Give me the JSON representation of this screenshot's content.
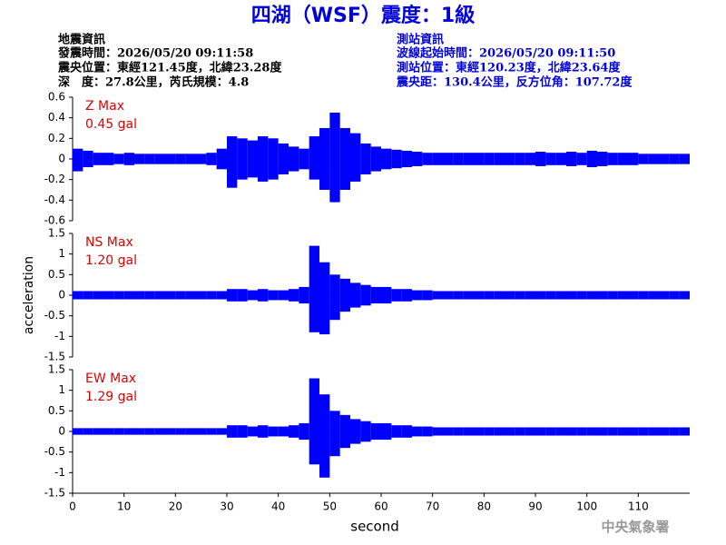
{
  "header": {
    "title": "四湖（WSF）震度：1級",
    "left": [
      "地震資訊",
      "發震時間：2026/05/20 09:11:58",
      "震央位置：東經121.45度，北緯23.28度",
      "深　度：27.8公里，芮氏規模：4.8"
    ],
    "right": [
      "測站資訊",
      "波線起始時間：2026/05/20 09:11:50",
      "測站位置：東經120.23度，北緯23.64度",
      "震央距：130.4公里，反方位角：107.72度"
    ]
  },
  "footer": "中央氣象署",
  "chart_data": [
    {
      "type": "band",
      "annotation": [
        "Z Max",
        "0.45 gal"
      ],
      "color": "#0000ff",
      "xlim": [
        0,
        120
      ],
      "ylim": [
        -0.6,
        0.6
      ],
      "yticks": [
        0.6,
        0.4,
        0.2,
        0,
        -0.2,
        -0.4,
        -0.6
      ],
      "x": [
        0,
        2,
        4,
        6,
        8,
        10,
        12,
        14,
        16,
        18,
        20,
        22,
        24,
        26,
        28,
        30,
        32,
        34,
        36,
        38,
        40,
        42,
        44,
        46,
        48,
        50,
        52,
        54,
        56,
        58,
        60,
        62,
        64,
        66,
        68,
        70,
        72,
        74,
        76,
        78,
        80,
        82,
        84,
        86,
        88,
        90,
        92,
        94,
        96,
        98,
        100,
        102,
        104,
        106,
        108,
        110,
        112,
        114,
        116,
        118
      ],
      "upper": [
        0.1,
        0.08,
        0.06,
        0.06,
        0.05,
        0.06,
        0.05,
        0.05,
        0.05,
        0.05,
        0.05,
        0.05,
        0.05,
        0.06,
        0.1,
        0.22,
        0.2,
        0.18,
        0.22,
        0.2,
        0.15,
        0.12,
        0.1,
        0.22,
        0.3,
        0.45,
        0.3,
        0.25,
        0.15,
        0.12,
        0.1,
        0.09,
        0.08,
        0.07,
        0.06,
        0.06,
        0.06,
        0.06,
        0.06,
        0.06,
        0.06,
        0.06,
        0.06,
        0.06,
        0.06,
        0.07,
        0.06,
        0.06,
        0.07,
        0.06,
        0.08,
        0.07,
        0.06,
        0.06,
        0.06,
        0.05,
        0.05,
        0.05,
        0.05,
        0.05
      ],
      "lower": [
        -0.12,
        -0.08,
        -0.06,
        -0.06,
        -0.05,
        -0.06,
        -0.05,
        -0.05,
        -0.05,
        -0.05,
        -0.05,
        -0.05,
        -0.05,
        -0.06,
        -0.1,
        -0.28,
        -0.2,
        -0.18,
        -0.22,
        -0.2,
        -0.15,
        -0.12,
        -0.1,
        -0.2,
        -0.3,
        -0.42,
        -0.3,
        -0.22,
        -0.15,
        -0.12,
        -0.1,
        -0.09,
        -0.08,
        -0.07,
        -0.06,
        -0.06,
        -0.06,
        -0.06,
        -0.06,
        -0.06,
        -0.06,
        -0.06,
        -0.06,
        -0.06,
        -0.06,
        -0.07,
        -0.06,
        -0.06,
        -0.07,
        -0.06,
        -0.08,
        -0.07,
        -0.06,
        -0.06,
        -0.06,
        -0.05,
        -0.05,
        -0.05,
        -0.05,
        -0.05
      ]
    },
    {
      "type": "band",
      "annotation": [
        "NS Max",
        "1.20 gal"
      ],
      "ylabel": "acceleration",
      "color": "#0000ff",
      "xlim": [
        0,
        120
      ],
      "ylim": [
        -1.5,
        1.5
      ],
      "yticks": [
        1.5,
        1,
        0.5,
        0,
        -0.5,
        -1,
        -1.5
      ],
      "x": [
        0,
        2,
        4,
        6,
        8,
        10,
        12,
        14,
        16,
        18,
        20,
        22,
        24,
        26,
        28,
        30,
        32,
        34,
        36,
        38,
        40,
        42,
        44,
        46,
        48,
        50,
        52,
        54,
        56,
        58,
        60,
        62,
        64,
        66,
        68,
        70,
        72,
        74,
        76,
        78,
        80,
        82,
        84,
        86,
        88,
        90,
        92,
        94,
        96,
        98,
        100,
        102,
        104,
        106,
        108,
        110,
        112,
        114,
        116,
        118
      ],
      "upper": [
        0.1,
        0.1,
        0.1,
        0.1,
        0.1,
        0.1,
        0.1,
        0.1,
        0.1,
        0.1,
        0.1,
        0.1,
        0.1,
        0.1,
        0.1,
        0.15,
        0.15,
        0.12,
        0.15,
        0.12,
        0.12,
        0.15,
        0.2,
        1.2,
        0.8,
        0.5,
        0.4,
        0.3,
        0.25,
        0.2,
        0.2,
        0.15,
        0.15,
        0.12,
        0.12,
        0.1,
        0.1,
        0.1,
        0.1,
        0.1,
        0.1,
        0.1,
        0.1,
        0.1,
        0.1,
        0.1,
        0.1,
        0.1,
        0.1,
        0.1,
        0.1,
        0.1,
        0.1,
        0.1,
        0.1,
        0.1,
        0.1,
        0.1,
        0.1,
        0.1
      ],
      "lower": [
        -0.1,
        -0.1,
        -0.1,
        -0.1,
        -0.1,
        -0.1,
        -0.1,
        -0.1,
        -0.1,
        -0.1,
        -0.1,
        -0.1,
        -0.1,
        -0.1,
        -0.1,
        -0.15,
        -0.15,
        -0.12,
        -0.15,
        -0.12,
        -0.12,
        -0.15,
        -0.2,
        -0.9,
        -0.95,
        -0.6,
        -0.4,
        -0.3,
        -0.25,
        -0.2,
        -0.2,
        -0.15,
        -0.15,
        -0.12,
        -0.12,
        -0.1,
        -0.1,
        -0.1,
        -0.1,
        -0.1,
        -0.1,
        -0.1,
        -0.1,
        -0.1,
        -0.1,
        -0.1,
        -0.1,
        -0.1,
        -0.1,
        -0.1,
        -0.1,
        -0.1,
        -0.1,
        -0.1,
        -0.1,
        -0.1,
        -0.1,
        -0.1,
        -0.1,
        -0.1
      ]
    },
    {
      "type": "band",
      "annotation": [
        "EW Max",
        "1.29 gal"
      ],
      "xlabel": "second",
      "color": "#0000ff",
      "xlim": [
        0,
        120
      ],
      "xticks": [
        0,
        10,
        20,
        30,
        40,
        50,
        60,
        70,
        80,
        90,
        100,
        110
      ],
      "ylim": [
        -1.5,
        1.5
      ],
      "yticks": [
        1.5,
        1,
        0.5,
        0,
        -0.5,
        -1,
        -1.5
      ],
      "x": [
        0,
        2,
        4,
        6,
        8,
        10,
        12,
        14,
        16,
        18,
        20,
        22,
        24,
        26,
        28,
        30,
        32,
        34,
        36,
        38,
        40,
        42,
        44,
        46,
        48,
        50,
        52,
        54,
        56,
        58,
        60,
        62,
        64,
        66,
        68,
        70,
        72,
        74,
        76,
        78,
        80,
        82,
        84,
        86,
        88,
        90,
        92,
        94,
        96,
        98,
        100,
        102,
        104,
        106,
        108,
        110,
        112,
        114,
        116,
        118
      ],
      "upper": [
        0.08,
        0.08,
        0.08,
        0.08,
        0.08,
        0.08,
        0.08,
        0.08,
        0.08,
        0.08,
        0.08,
        0.08,
        0.08,
        0.08,
        0.08,
        0.15,
        0.15,
        0.12,
        0.15,
        0.12,
        0.12,
        0.15,
        0.2,
        1.29,
        0.9,
        0.5,
        0.4,
        0.3,
        0.25,
        0.2,
        0.2,
        0.15,
        0.15,
        0.12,
        0.12,
        0.1,
        0.1,
        0.1,
        0.1,
        0.1,
        0.1,
        0.1,
        0.1,
        0.1,
        0.1,
        0.1,
        0.1,
        0.1,
        0.1,
        0.1,
        0.1,
        0.1,
        0.1,
        0.1,
        0.1,
        0.1,
        0.1,
        0.1,
        0.1,
        0.1
      ],
      "lower": [
        -0.08,
        -0.08,
        -0.08,
        -0.08,
        -0.08,
        -0.08,
        -0.08,
        -0.08,
        -0.08,
        -0.08,
        -0.08,
        -0.08,
        -0.08,
        -0.08,
        -0.08,
        -0.15,
        -0.15,
        -0.12,
        -0.15,
        -0.12,
        -0.12,
        -0.15,
        -0.2,
        -0.8,
        -1.12,
        -0.6,
        -0.4,
        -0.3,
        -0.25,
        -0.2,
        -0.2,
        -0.15,
        -0.15,
        -0.12,
        -0.12,
        -0.1,
        -0.1,
        -0.1,
        -0.1,
        -0.1,
        -0.1,
        -0.1,
        -0.1,
        -0.1,
        -0.1,
        -0.1,
        -0.1,
        -0.1,
        -0.1,
        -0.1,
        -0.1,
        -0.1,
        -0.1,
        -0.1,
        -0.1,
        -0.1,
        -0.1,
        -0.1,
        -0.1,
        -0.1
      ]
    }
  ]
}
